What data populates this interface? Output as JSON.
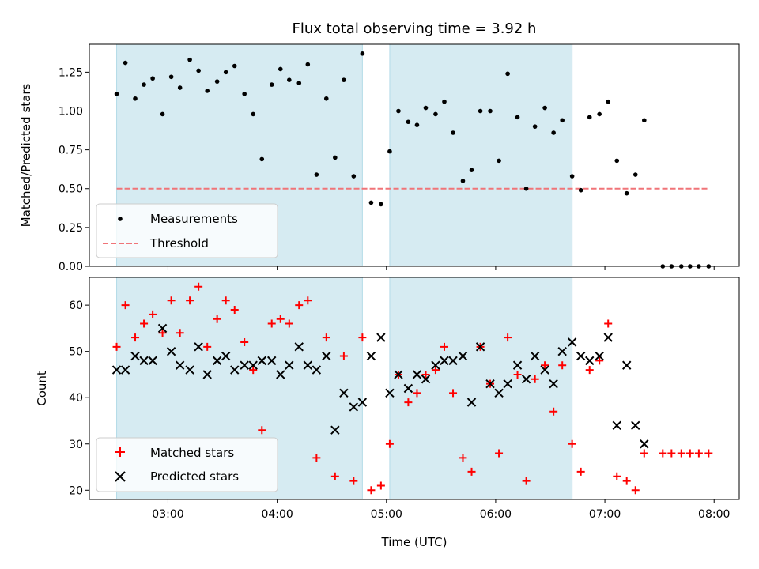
{
  "chart_data": {
    "type": "scatter",
    "title": "Flux total observing time = 3.92 h",
    "xlabel": "Time (UTC)",
    "x_ticks": [
      "03:00",
      "04:00",
      "05:00",
      "06:00",
      "07:00",
      "08:00"
    ],
    "x_range_hours": [
      2.28,
      8.23
    ],
    "shaded_intervals": [
      [
        2.53,
        4.78
      ],
      [
        5.03,
        6.7
      ]
    ],
    "top": {
      "ylabel": "Matched/Predicted stars",
      "ylim": [
        0,
        1.43
      ],
      "yticks": [
        0.0,
        0.25,
        0.5,
        0.75,
        1.0,
        1.25
      ],
      "ytick_labels": [
        "0.00",
        "0.25",
        "0.50",
        "0.75",
        "1.00",
        "1.25"
      ],
      "legend": {
        "placement": "lower-left",
        "entries": [
          "Measurements",
          "Threshold"
        ]
      },
      "threshold": {
        "value": 0.5,
        "x_start": 2.53,
        "x_end": 7.95,
        "color": "#f07478"
      },
      "measurements": {
        "name": "Measurements",
        "x": [
          2.53,
          2.61,
          2.7,
          2.78,
          2.86,
          2.95,
          3.03,
          3.11,
          3.2,
          3.28,
          3.36,
          3.45,
          3.53,
          3.61,
          3.7,
          3.78,
          3.86,
          3.95,
          4.03,
          4.11,
          4.2,
          4.28,
          4.36,
          4.45,
          4.53,
          4.61,
          4.7,
          4.78,
          4.86,
          4.95,
          5.03,
          5.11,
          5.2,
          5.28,
          5.36,
          5.45,
          5.53,
          5.61,
          5.7,
          5.78,
          5.86,
          5.95,
          6.03,
          6.11,
          6.2,
          6.28,
          6.36,
          6.45,
          6.53,
          6.61,
          6.7,
          6.78,
          6.86,
          6.95,
          7.03,
          7.11,
          7.2,
          7.28,
          7.36,
          7.53,
          7.61,
          7.7,
          7.78,
          7.86,
          7.95
        ],
        "y": [
          1.11,
          1.31,
          1.08,
          1.17,
          1.21,
          0.98,
          1.22,
          1.15,
          1.33,
          1.26,
          1.13,
          1.19,
          1.25,
          1.29,
          1.11,
          0.98,
          0.69,
          1.17,
          1.27,
          1.2,
          1.18,
          1.3,
          0.59,
          1.08,
          0.7,
          1.2,
          0.58,
          1.37,
          0.41,
          0.4,
          0.74,
          1.0,
          0.93,
          0.91,
          1.02,
          0.98,
          1.06,
          0.86,
          0.55,
          0.62,
          1.0,
          1.0,
          0.68,
          1.24,
          0.96,
          0.5,
          0.9,
          1.02,
          0.86,
          0.94,
          0.58,
          0.49,
          0.96,
          0.98,
          1.06,
          0.68,
          0.47,
          0.59,
          0.94,
          0.0,
          0.0,
          0.0,
          0.0,
          0.0,
          0.0
        ]
      }
    },
    "bottom": {
      "ylabel": "Count",
      "ylim": [
        18,
        66
      ],
      "yticks": [
        20,
        30,
        40,
        50,
        60
      ],
      "ytick_labels": [
        "20",
        "30",
        "40",
        "50",
        "60"
      ],
      "legend": {
        "placement": "lower-left",
        "entries": [
          "Matched stars",
          "Predicted stars"
        ]
      },
      "x": [
        2.53,
        2.61,
        2.7,
        2.78,
        2.86,
        2.95,
        3.03,
        3.11,
        3.2,
        3.28,
        3.36,
        3.45,
        3.53,
        3.61,
        3.7,
        3.78,
        3.86,
        3.95,
        4.03,
        4.11,
        4.2,
        4.28,
        4.36,
        4.45,
        4.53,
        4.61,
        4.7,
        4.78,
        4.86,
        4.95,
        5.03,
        5.11,
        5.2,
        5.28,
        5.36,
        5.45,
        5.53,
        5.61,
        5.7,
        5.78,
        5.86,
        5.95,
        6.03,
        6.11,
        6.2,
        6.28,
        6.36,
        6.45,
        6.53,
        6.61,
        6.7,
        6.78,
        6.86,
        6.95,
        7.03,
        7.11,
        7.2,
        7.28,
        7.36,
        7.53,
        7.61,
        7.7,
        7.78,
        7.86,
        7.95
      ],
      "series": [
        {
          "name": "Matched stars",
          "color": "#ff0000",
          "marker": "plus",
          "values": [
            51,
            60,
            53,
            56,
            58,
            54,
            61,
            54,
            61,
            64,
            51,
            57,
            61,
            59,
            52,
            46,
            33,
            56,
            57,
            56,
            60,
            61,
            27,
            53,
            23,
            49,
            22,
            53,
            20,
            21,
            30,
            45,
            39,
            41,
            45,
            46,
            51,
            41,
            27,
            24,
            51,
            43,
            28,
            53,
            45,
            22,
            44,
            47,
            37,
            47,
            30,
            24,
            46,
            48,
            56,
            23,
            22,
            20,
            28,
            28,
            28,
            28,
            28,
            28,
            28
          ]
        },
        {
          "name": "Predicted stars",
          "color": "#000000",
          "marker": "x",
          "values": [
            46,
            46,
            49,
            48,
            48,
            55,
            50,
            47,
            46,
            51,
            45,
            48,
            49,
            46,
            47,
            47,
            48,
            48,
            45,
            47,
            51,
            47,
            46,
            49,
            33,
            41,
            38,
            39,
            49,
            53,
            41,
            45,
            42,
            45,
            44,
            47,
            48,
            48,
            49,
            39,
            51,
            43,
            41,
            43,
            47,
            44,
            49,
            46,
            43,
            50,
            52,
            49,
            48,
            49,
            53,
            34,
            47,
            34,
            30,
            null,
            null,
            null,
            null,
            null,
            null
          ]
        }
      ]
    }
  }
}
